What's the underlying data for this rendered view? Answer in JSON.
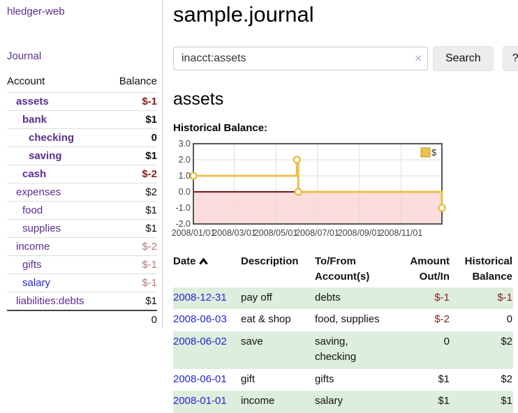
{
  "sidebar": {
    "brand": "hledger-web",
    "journal_link": "Journal",
    "accounts_table": {
      "headers": {
        "account": "Account",
        "balance": "Balance"
      },
      "rows": [
        {
          "name": "assets",
          "level": 1,
          "bold": true,
          "balance": "$-1",
          "balance_tone": "neg-strong",
          "link_tone": "purple"
        },
        {
          "name": "bank",
          "level": 2,
          "bold": true,
          "balance": "$1",
          "balance_tone": "normal",
          "link_tone": "purple"
        },
        {
          "name": "checking",
          "level": 3,
          "bold": true,
          "balance": "0",
          "balance_tone": "normal",
          "link_tone": "purple"
        },
        {
          "name": "saving",
          "level": 3,
          "bold": true,
          "balance": "$1",
          "balance_tone": "normal",
          "link_tone": "purple"
        },
        {
          "name": "cash",
          "level": 2,
          "bold": true,
          "balance": "$-2",
          "balance_tone": "neg-strong",
          "link_tone": "purple"
        },
        {
          "name": "expenses",
          "level": 1,
          "bold": false,
          "balance": "$2",
          "balance_tone": "normal",
          "link_tone": "purple"
        },
        {
          "name": "food",
          "level": 2,
          "bold": false,
          "balance": "$1",
          "balance_tone": "normal",
          "link_tone": "purple"
        },
        {
          "name": "supplies",
          "level": 2,
          "bold": false,
          "balance": "$1",
          "balance_tone": "normal",
          "link_tone": "purple"
        },
        {
          "name": "income",
          "level": 1,
          "bold": false,
          "balance": "$-2",
          "balance_tone": "neg-muted",
          "link_tone": "purple"
        },
        {
          "name": "gifts",
          "level": 2,
          "bold": false,
          "balance": "$-1",
          "balance_tone": "neg-muted",
          "link_tone": "purple"
        },
        {
          "name": "salary",
          "level": 2,
          "bold": false,
          "balance": "$-1",
          "balance_tone": "neg-muted",
          "link_tone": "blue"
        },
        {
          "name": "liabilities:debts",
          "level": 1,
          "bold": false,
          "balance": "$1",
          "balance_tone": "normal",
          "link_tone": "purple"
        }
      ],
      "total": "0"
    }
  },
  "header": {
    "title": "sample.journal"
  },
  "search": {
    "value": "inacct:assets",
    "clear_icon": "×",
    "button_label": "Search",
    "help_label": "?"
  },
  "main": {
    "account_heading": "assets",
    "chart_label": "Historical Balance:"
  },
  "chart_data": {
    "type": "line",
    "subtype": "step-after",
    "title": "Historical Balance:",
    "xlabel": "",
    "ylabel": "",
    "x_start": "2008-01-01",
    "x_end": "2008-12-31",
    "x_span_days": 365,
    "ylim": [
      -2.0,
      3.0
    ],
    "yticks": [
      "3.0",
      "2.0",
      "1.0",
      "0.0",
      "-1.0",
      "-2.0"
    ],
    "ytick_values": [
      3,
      2,
      1,
      0,
      -1,
      -2
    ],
    "xticks": [
      "2008/01/01",
      "2008/03/01",
      "2008/05/01",
      "2008/07/01",
      "2008/09/01",
      "2008/11/01"
    ],
    "xtick_dates": [
      "2008-01-01",
      "2008-03-01",
      "2008-05-01",
      "2008-07-01",
      "2008-09-01",
      "2008-11-01"
    ],
    "grid": true,
    "legend_position": "top-right",
    "series": [
      {
        "name": "$",
        "points": [
          {
            "date": "2008-01-01",
            "value": 1
          },
          {
            "date": "2008-06-01",
            "value": 2
          },
          {
            "date": "2008-06-03",
            "value": 0
          },
          {
            "date": "2008-12-31",
            "value": -1
          }
        ]
      }
    ]
  },
  "transactions_table": {
    "headers": [
      "Date",
      "Description",
      "To/From Account(s)",
      "Amount Out/In",
      "Historical Balance"
    ],
    "rows": [
      {
        "date": "2008-12-31",
        "description": "pay off",
        "accounts": "debts",
        "amount": "$-1",
        "amount_negative": true,
        "balance": "$-1",
        "balance_negative": true
      },
      {
        "date": "2008-06-03",
        "description": "eat & shop",
        "accounts": "food, supplies",
        "amount": "$-2",
        "amount_negative": true,
        "balance": "0",
        "balance_negative": false
      },
      {
        "date": "2008-06-02",
        "description": "save",
        "accounts": "saving, checking",
        "amount": "0",
        "amount_negative": false,
        "balance": "$2",
        "balance_negative": false
      },
      {
        "date": "2008-06-01",
        "description": "gift",
        "accounts": "gifts",
        "amount": "$1",
        "amount_negative": false,
        "balance": "$2",
        "balance_negative": false
      },
      {
        "date": "2008-01-01",
        "description": "income",
        "accounts": "salary",
        "amount": "$1",
        "amount_negative": false,
        "balance": "$1",
        "balance_negative": false
      }
    ]
  },
  "colors": {
    "link_purple": "#5b2d91",
    "link_blue": "#2525d8",
    "negative_strong": "#8b1a1a",
    "negative_muted": "#bb7777",
    "row_green": "#ddeedd",
    "chart_line_gold": "#e9c04a",
    "chart_gold_border": "#c49a2f",
    "chart_negative_fill": "#fcdcdc",
    "chart_zero_line": "#7a1414",
    "chart_border": "#555555",
    "chart_grid": "#dddddd",
    "chart_text": "#444444"
  }
}
